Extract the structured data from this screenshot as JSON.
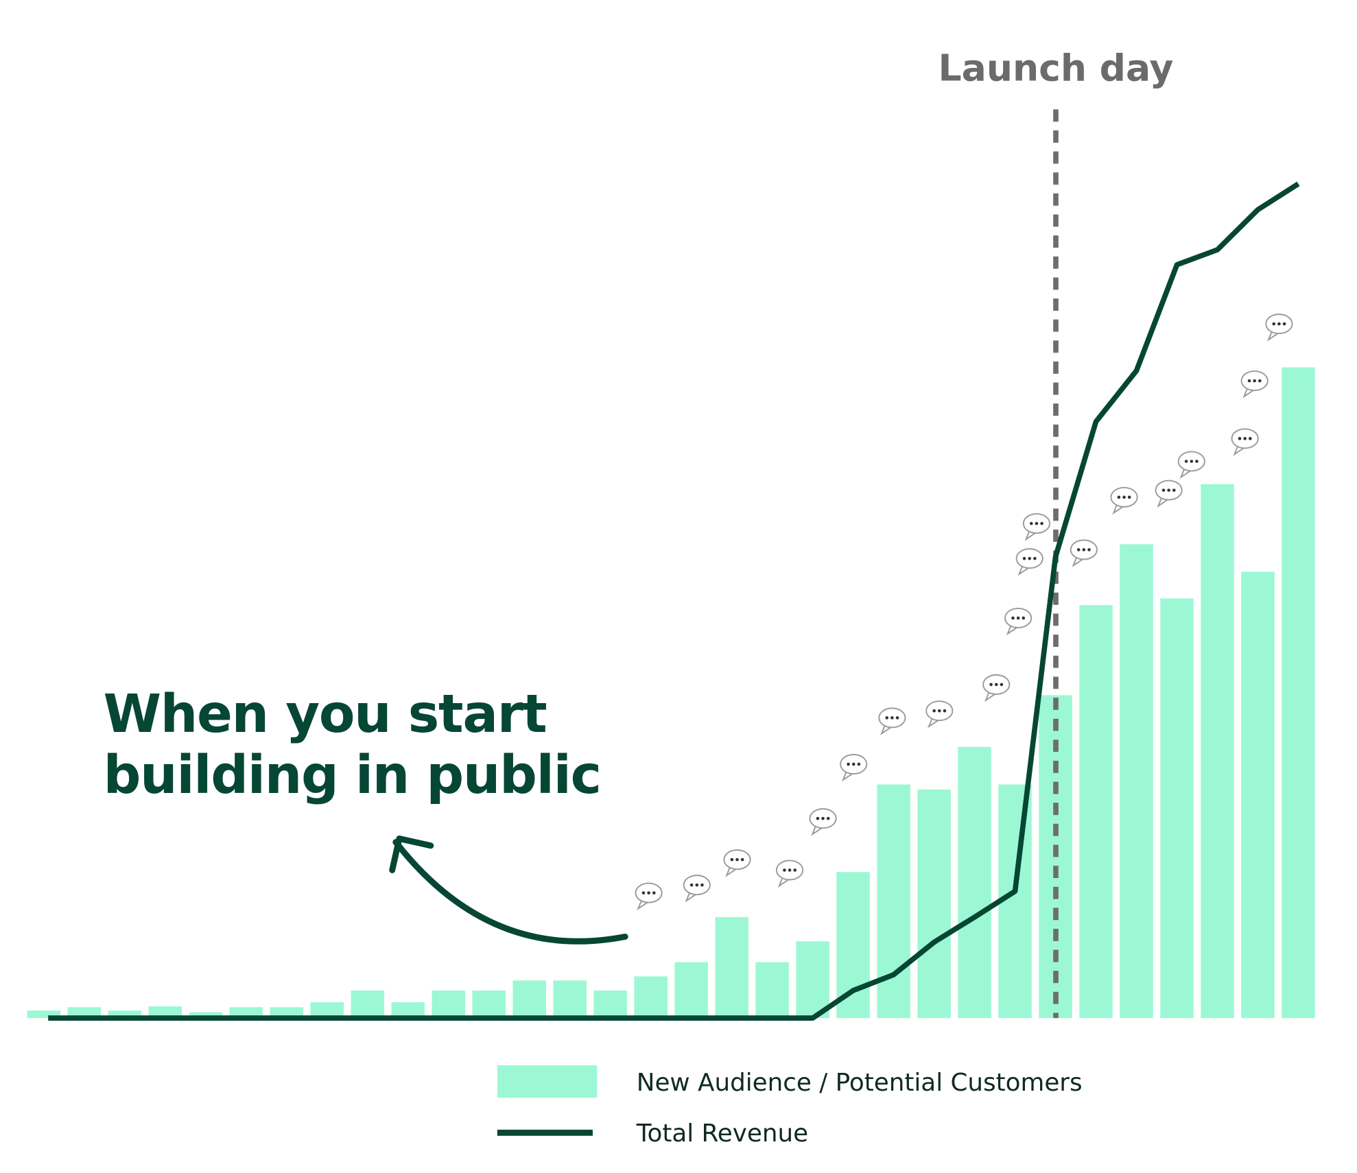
{
  "chart_data": {
    "type": "bar",
    "categories": [
      null,
      null,
      null,
      null,
      null,
      null,
      null,
      null,
      null,
      null,
      null,
      null,
      null,
      null,
      null,
      null,
      null,
      null,
      null,
      null,
      null,
      null,
      null,
      null,
      null,
      null,
      null,
      null,
      null,
      null,
      null,
      null
    ],
    "series": [
      {
        "name": "New Audience / Potential Customers",
        "type": "bar",
        "color": "#9cf8d4",
        "values": [
          0.9,
          1.3,
          0.9,
          1.4,
          0.7,
          1.3,
          1.3,
          1.9,
          3.3,
          1.9,
          3.3,
          3.3,
          4.5,
          4.5,
          3.3,
          5.0,
          6.7,
          12.1,
          6.7,
          9.2,
          17.5,
          28.0,
          27.4,
          32.5,
          28.0,
          38.7,
          49.5,
          56.8,
          50.3,
          64.0,
          53.5,
          78.0
        ]
      },
      {
        "name": "Total Revenue",
        "type": "line",
        "color": "#064634",
        "values": [
          0,
          0,
          0,
          0,
          0,
          0,
          0,
          0,
          0,
          0,
          0,
          0,
          0,
          0,
          0,
          0,
          0,
          0,
          0,
          0,
          3.3,
          5.2,
          9.1,
          12.1,
          15.2,
          55.3,
          71.5,
          77.6,
          90.3,
          92.1,
          96.9,
          100
        ]
      }
    ],
    "ylim": [
      0,
      100
    ],
    "launch_label": "Launch day",
    "callout": [
      "When you start",
      "building in public"
    ]
  }
}
